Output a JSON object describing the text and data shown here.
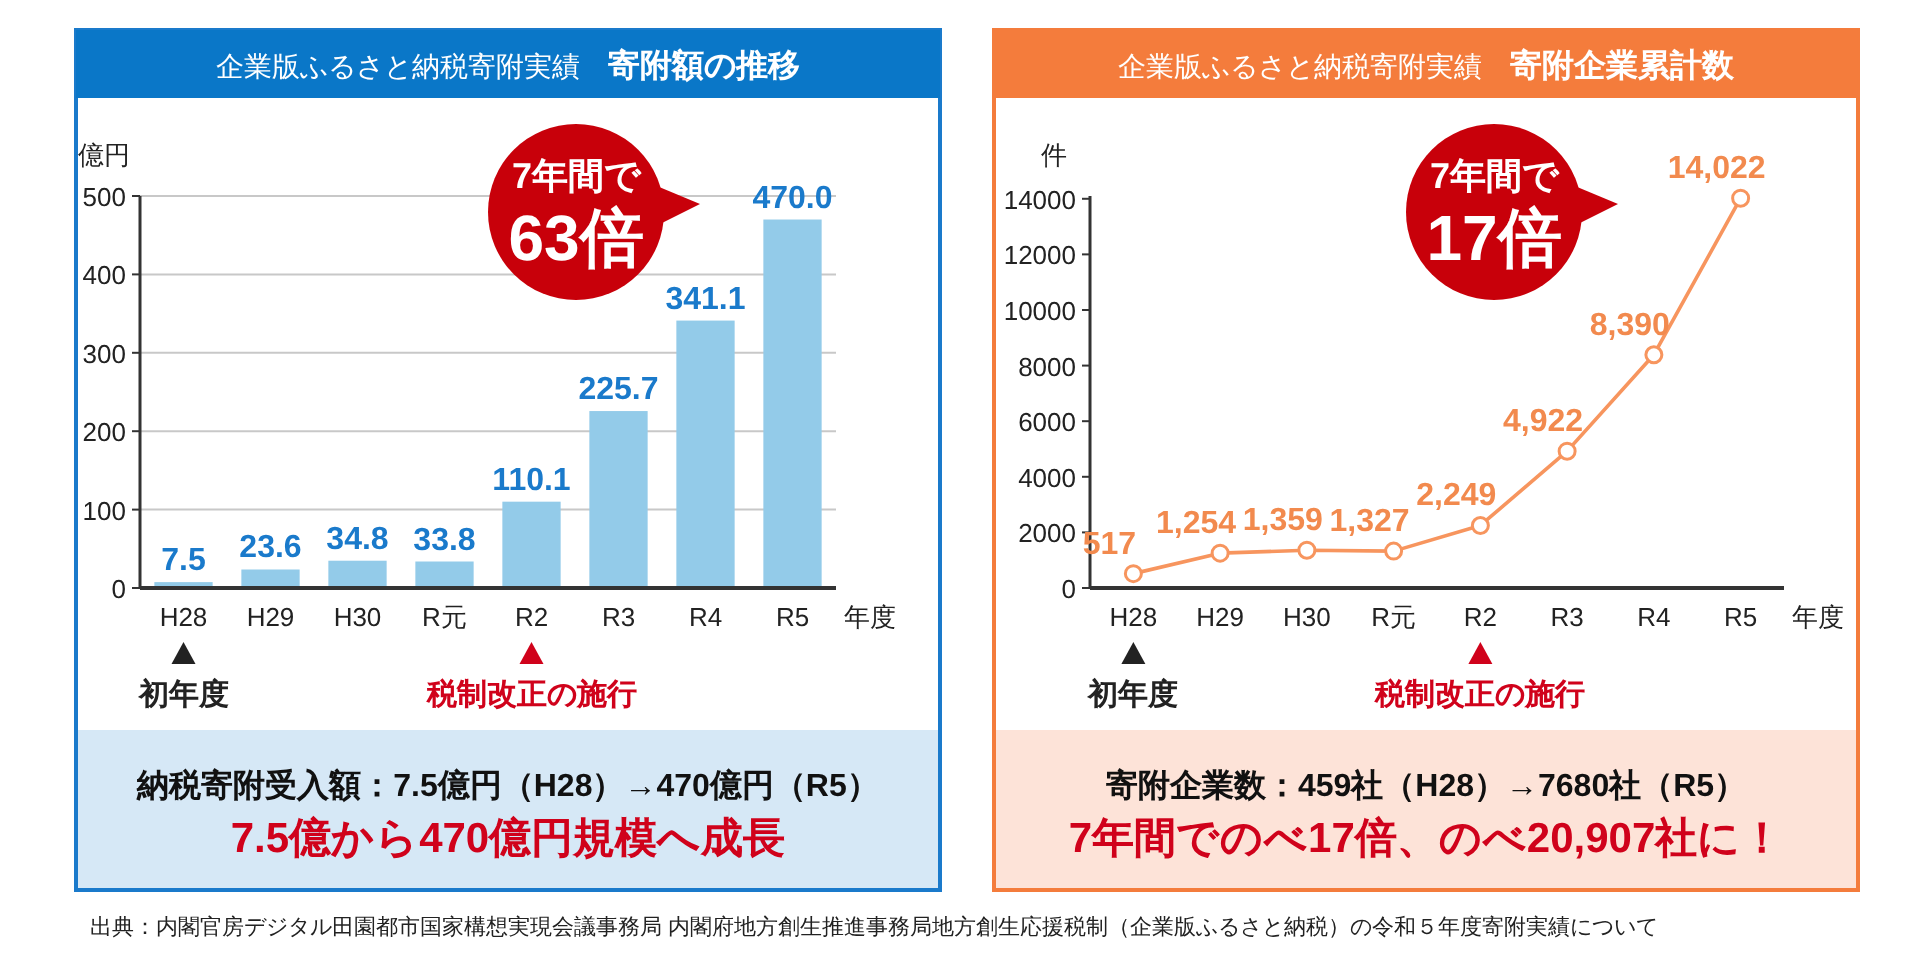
{
  "chart_data": [
    {
      "type": "bar",
      "title": "寄附額の推移",
      "subtitle": "企業版ふるさと納税寄附実績",
      "ylabel": "億円",
      "xlabel": "年度",
      "categories": [
        "H28",
        "H29",
        "H30",
        "R元",
        "R2",
        "R3",
        "R4",
        "R5"
      ],
      "values": [
        7.5,
        23.6,
        34.8,
        33.8,
        110.1,
        225.7,
        341.1,
        470.0
      ],
      "value_labels": [
        "7.5",
        "23.6",
        "34.8",
        "33.8",
        "110.1",
        "225.7",
        "341.1",
        "470.0"
      ],
      "color": "#93cbe9",
      "ylim": [
        0,
        500
      ],
      "yticks": [
        0,
        100,
        200,
        300,
        400,
        500
      ],
      "grid": "y",
      "annotations": [
        "7年間で",
        "63倍",
        "初年度",
        "税制改正の施行",
        "納税寄附受入額：7.5億円（H28）→470億円（R5）",
        "7.5億から470億円規模へ成長"
      ]
    },
    {
      "type": "line",
      "title": "寄附企業累計数",
      "subtitle": "企業版ふるさと納税寄附実績",
      "ylabel": "件",
      "xlabel": "年度",
      "categories": [
        "H28",
        "H29",
        "H30",
        "R元",
        "R2",
        "R3",
        "R4",
        "R5"
      ],
      "values": [
        517,
        1254,
        1359,
        1327,
        2249,
        4922,
        8390,
        14022
      ],
      "value_labels": [
        "517",
        "1,254",
        "1,359",
        "1,327",
        "2,249",
        "4,922",
        "8,390",
        "14,022"
      ],
      "color": "#f7955e",
      "marker": "circle",
      "ylim": [
        0,
        14100
      ],
      "yticks": [
        0,
        2000,
        4000,
        6000,
        8000,
        10000,
        12000,
        14000
      ],
      "annotations": [
        "7年間で",
        "17倍",
        "初年度",
        "税制改正の施行",
        "寄附企業数：459社（H28）→7680社（R5）",
        "7年間でのべ17倍、のべ20,907社に！",
        "出典：内閣官房デジタル田園都市国家構想実現会議事務局 内閣府地方創生推進事務局地方創生応援税制（企業版ふるさと納税）の令和５年度寄附実績について"
      ]
    }
  ]
}
